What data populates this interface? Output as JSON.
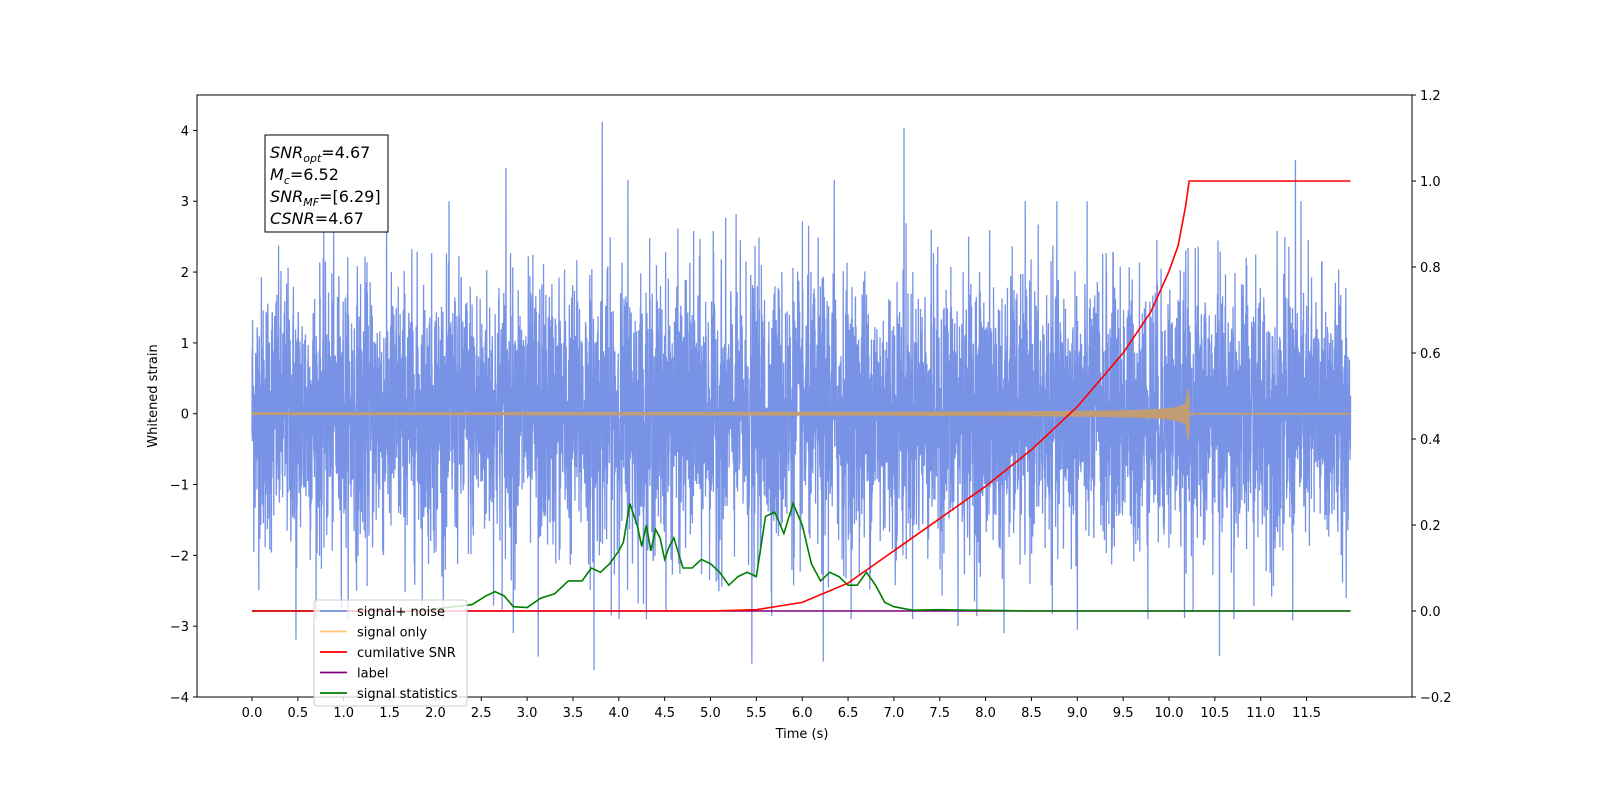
{
  "chart_data": {
    "type": "line",
    "title": "",
    "xlabel": "Time (s)",
    "ylabel": "Whitened strain",
    "y2label": "",
    "xlim": [
      -0.6,
      12.65
    ],
    "ylim": [
      -4,
      4.5
    ],
    "y2lim": [
      -0.2,
      1.2
    ],
    "xticks": [
      0.0,
      0.5,
      1.0,
      1.5,
      2.0,
      2.5,
      3.0,
      3.5,
      4.0,
      4.5,
      5.0,
      5.5,
      6.0,
      6.5,
      7.0,
      7.5,
      8.0,
      8.5,
      9.0,
      9.5,
      10.0,
      10.5,
      11.0,
      11.5
    ],
    "xtick_labels": [
      "0.0",
      "0.5",
      "1.0",
      "1.5",
      "2.0",
      "2.5",
      "3.0",
      "3.5",
      "4.0",
      "4.5",
      "5.0",
      "5.5",
      "6.0",
      "6.5",
      "7.0",
      "7.5",
      "8.0",
      "8.5",
      "9.0",
      "9.5",
      "10.0",
      "10.5",
      "11.0",
      "11.5"
    ],
    "yticks": [
      -4,
      -3,
      -2,
      -1,
      0,
      1,
      2,
      3,
      4
    ],
    "ytick_labels": [
      "−4",
      "−3",
      "−2",
      "−1",
      "0",
      "1",
      "2",
      "3",
      "4"
    ],
    "y2ticks": [
      -0.2,
      0.0,
      0.2,
      0.4,
      0.6,
      0.8,
      1.0,
      1.2
    ],
    "y2tick_labels": [
      "−0.2",
      "0.0",
      "0.2",
      "0.4",
      "0.6",
      "0.8",
      "1.0",
      "1.2"
    ],
    "grid": false,
    "legend_position": "lower-left",
    "series": [
      {
        "name": "signal+ noise",
        "axis": "left",
        "color": "#7893e6",
        "kind": "noise",
        "t_range": [
          0.0,
          11.98
        ],
        "std": 0.95,
        "spikes": [
          {
            "t": 3.82,
            "y": 4.12
          },
          {
            "t": 7.11,
            "y": 4.04
          },
          {
            "t": 11.38,
            "y": 3.58
          },
          {
            "t": 2.77,
            "y": 3.47
          },
          {
            "t": 4.1,
            "y": 3.3
          },
          {
            "t": 6.35,
            "y": 3.3
          },
          {
            "t": 3.73,
            "y": -3.62
          },
          {
            "t": 5.45,
            "y": -3.53
          },
          {
            "t": 6.23,
            "y": -3.5
          },
          {
            "t": 10.55,
            "y": -3.42
          },
          {
            "t": 3.12,
            "y": -3.43
          },
          {
            "t": 0.48,
            "y": -3.2
          },
          {
            "t": 2.85,
            "y": -3.1
          },
          {
            "t": 9.0,
            "y": -3.05
          },
          {
            "t": 11.35,
            "y": -2.92
          },
          {
            "t": 7.7,
            "y": -3.0
          },
          {
            "t": 8.2,
            "y": -3.1
          }
        ]
      },
      {
        "name": "signal only",
        "axis": "left",
        "color": "#ffc870",
        "kind": "chirp",
        "t_range": [
          0.0,
          11.98
        ],
        "merge_time": 10.22,
        "peak_amplitude": 0.45,
        "note_color_visible": "#c29d74"
      },
      {
        "name": "cumilative SNR",
        "axis": "right",
        "color": "#ff0000",
        "x": [
          0.0,
          5.0,
          5.5,
          6.0,
          6.5,
          7.0,
          7.5,
          8.0,
          8.5,
          9.0,
          9.5,
          9.8,
          10.0,
          10.1,
          10.18,
          10.22,
          10.25,
          11.98
        ],
        "values": [
          0.0,
          0.0,
          0.003,
          0.02,
          0.065,
          0.14,
          0.215,
          0.29,
          0.375,
          0.475,
          0.6,
          0.695,
          0.79,
          0.85,
          0.94,
          1.0,
          1.0,
          1.0
        ]
      },
      {
        "name": "label",
        "axis": "right",
        "color": "#800080",
        "x": [
          0.0,
          11.98
        ],
        "values": [
          0.0,
          0.0
        ]
      },
      {
        "name": "signal statistics",
        "axis": "right",
        "color": "#008000",
        "x": [
          0.0,
          1.8,
          2.0,
          2.2,
          2.4,
          2.55,
          2.65,
          2.75,
          2.85,
          3.0,
          3.15,
          3.3,
          3.45,
          3.6,
          3.7,
          3.8,
          3.9,
          4.0,
          4.05,
          4.12,
          4.2,
          4.25,
          4.3,
          4.35,
          4.4,
          4.45,
          4.5,
          4.55,
          4.6,
          4.7,
          4.8,
          4.9,
          5.0,
          5.1,
          5.2,
          5.3,
          5.4,
          5.5,
          5.6,
          5.7,
          5.8,
          5.9,
          6.0,
          6.1,
          6.2,
          6.3,
          6.4,
          6.5,
          6.6,
          6.7,
          6.8,
          6.9,
          7.0,
          7.2,
          7.5,
          7.8,
          8.2,
          8.5,
          11.98
        ],
        "values": [
          0.0,
          0.0,
          0.005,
          0.01,
          0.015,
          0.035,
          0.045,
          0.035,
          0.01,
          0.008,
          0.03,
          0.04,
          0.07,
          0.07,
          0.1,
          0.09,
          0.11,
          0.14,
          0.16,
          0.25,
          0.2,
          0.15,
          0.2,
          0.14,
          0.19,
          0.17,
          0.12,
          0.15,
          0.17,
          0.1,
          0.1,
          0.12,
          0.11,
          0.09,
          0.06,
          0.08,
          0.09,
          0.08,
          0.22,
          0.23,
          0.18,
          0.25,
          0.2,
          0.11,
          0.07,
          0.09,
          0.08,
          0.06,
          0.06,
          0.09,
          0.06,
          0.02,
          0.01,
          0.002,
          0.003,
          0.002,
          0.001,
          0.0,
          0.0
        ]
      }
    ],
    "legend": [
      {
        "label": "signal+ noise",
        "color": "#7893e6"
      },
      {
        "label": "signal only",
        "color": "#ffc870"
      },
      {
        "label": "cumilative SNR",
        "color": "#ff0000"
      },
      {
        "label": "label",
        "color": "#800080"
      },
      {
        "label": "signal statistics",
        "color": "#008000"
      }
    ],
    "annotation": {
      "lines": [
        {
          "base": "SNR",
          "sub": "opt",
          "value": "=4.67"
        },
        {
          "base": "M",
          "sub": "c",
          "value": "=6.52"
        },
        {
          "base": "SNR",
          "sub": "MF",
          "value": "=[6.29]"
        },
        {
          "base": "CSNR",
          "sub": "",
          "value": "=4.67"
        }
      ]
    }
  }
}
